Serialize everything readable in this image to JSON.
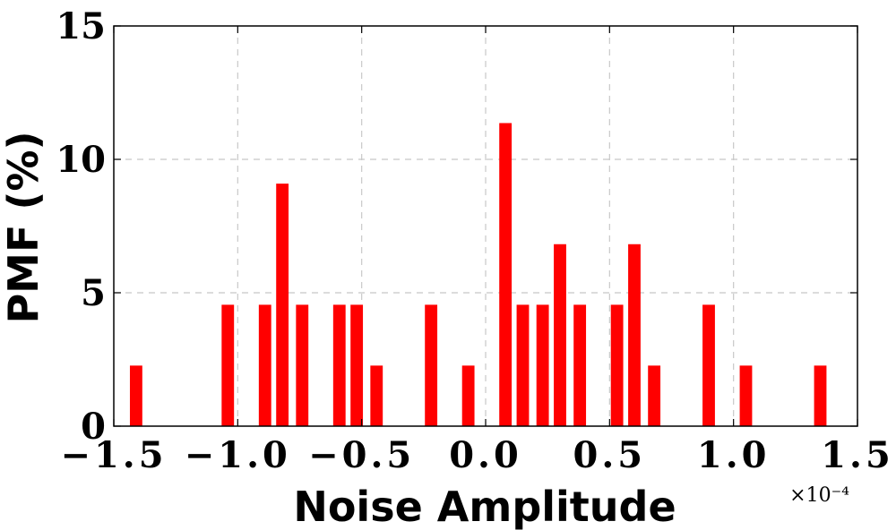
{
  "chart_data": {
    "type": "bar",
    "xlabel": "Noise Amplitude",
    "ylabel": "PMF (%)",
    "x_multiplier_label": "×10⁻⁴",
    "xlim": [
      -1.5,
      1.5
    ],
    "ylim": [
      0,
      15
    ],
    "x_ticks": [
      "−1.5",
      "−1.0",
      "−0.5",
      "0.0",
      "0.5",
      "1.0",
      "1.5"
    ],
    "x_tick_values": [
      -1.5,
      -1.0,
      -0.5,
      0.0,
      0.5,
      1.0,
      1.5
    ],
    "y_ticks": [
      "0",
      "5",
      "10",
      "15"
    ],
    "y_tick_values": [
      0,
      5,
      10,
      15
    ],
    "grid": true,
    "bar_color": "#ff0000",
    "bar_width": 0.05,
    "x": [
      -1.41,
      -1.04,
      -0.89,
      -0.82,
      -0.74,
      -0.59,
      -0.52,
      -0.44,
      -0.22,
      -0.07,
      0.08,
      0.15,
      0.23,
      0.3,
      0.38,
      0.53,
      0.6,
      0.68,
      0.9,
      1.05,
      1.35
    ],
    "values": [
      2.27,
      4.55,
      4.55,
      9.09,
      4.55,
      4.55,
      4.55,
      2.27,
      4.55,
      2.27,
      11.36,
      4.55,
      4.55,
      6.82,
      4.55,
      4.55,
      6.82,
      2.27,
      4.55,
      2.27,
      2.27
    ]
  }
}
